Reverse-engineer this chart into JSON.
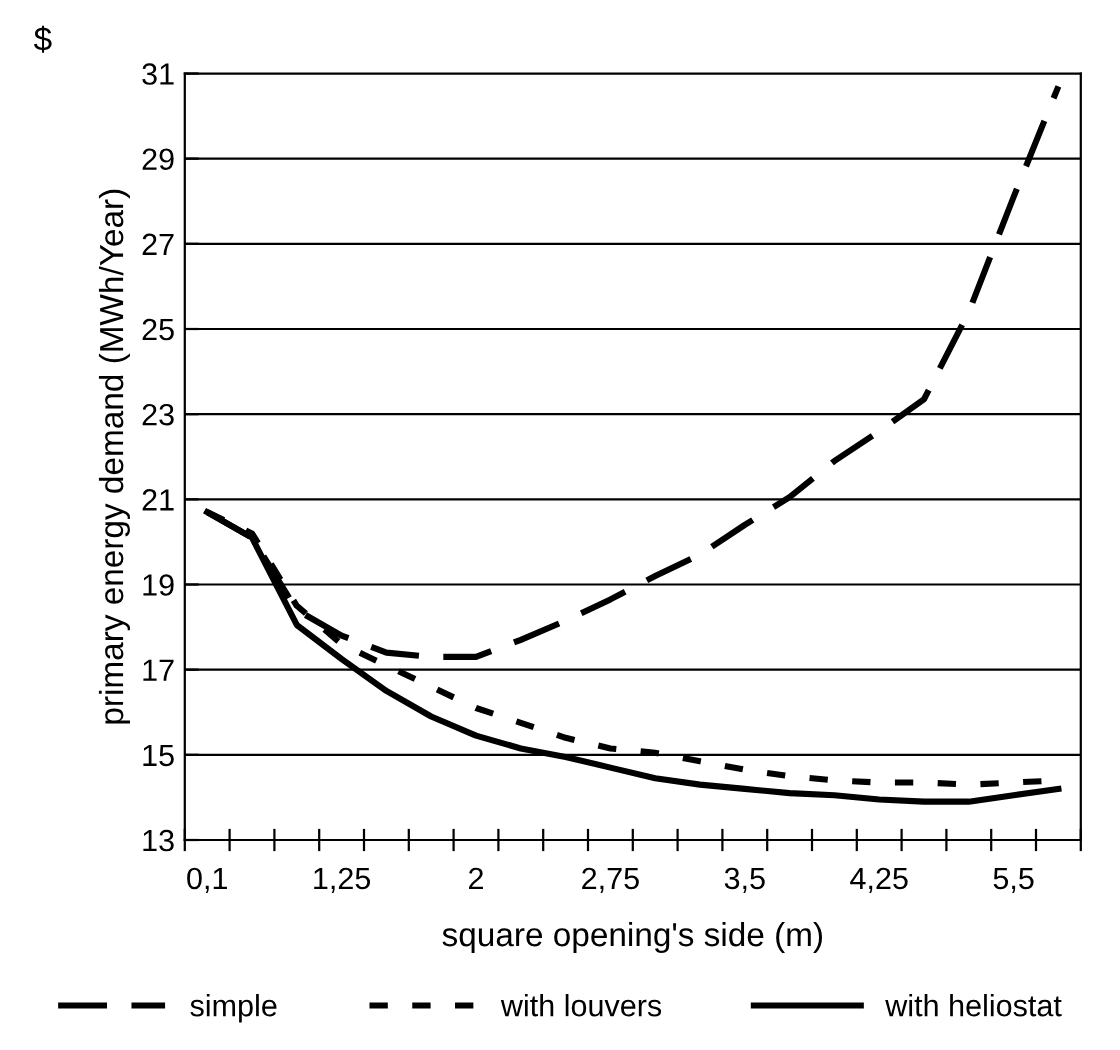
{
  "chart_data": {
    "type": "line",
    "xlabel": "square opening's side (m)",
    "ylabel": "primary energy demand (MWh/Year)",
    "annotations": [
      "$"
    ],
    "categories": [
      "0,1",
      null,
      null,
      "1,25",
      null,
      null,
      "2",
      null,
      null,
      "2,75",
      null,
      null,
      "3,5",
      null,
      null,
      "4,25",
      null,
      null,
      "5,5",
      null
    ],
    "series": [
      {
        "name": "simple",
        "color": "#000000",
        "line_style": "dashed",
        "values": [
          20.7,
          20.1,
          18.4,
          17.8,
          17.4,
          17.3,
          17.3,
          17.7,
          18.15,
          18.65,
          19.2,
          19.7,
          20.4,
          21.05,
          21.9,
          22.6,
          23.35,
          25.4,
          28.1,
          30.7
        ]
      },
      {
        "name": "with louvers",
        "color": "#000000",
        "line_style": "dotted",
        "values": [
          20.7,
          20.2,
          18.5,
          17.6,
          17.1,
          16.6,
          16.1,
          15.75,
          15.4,
          15.15,
          15.05,
          14.85,
          14.65,
          14.5,
          14.4,
          14.35,
          14.35,
          14.3,
          14.35,
          14.4
        ]
      },
      {
        "name": "with heliostat",
        "color": "#000000",
        "line_style": "solid",
        "values": [
          20.7,
          20.1,
          18.05,
          17.25,
          16.5,
          15.9,
          15.45,
          15.15,
          14.95,
          14.7,
          14.45,
          14.3,
          14.2,
          14.1,
          14.05,
          13.95,
          13.9,
          13.9,
          14.05,
          14.2
        ]
      }
    ],
    "ylim": [
      13,
      31
    ],
    "yticks": [
      13,
      15,
      17,
      19,
      21,
      23,
      25,
      27,
      29,
      31
    ],
    "grid": "y",
    "legend": "bottom",
    "marker": "none"
  }
}
